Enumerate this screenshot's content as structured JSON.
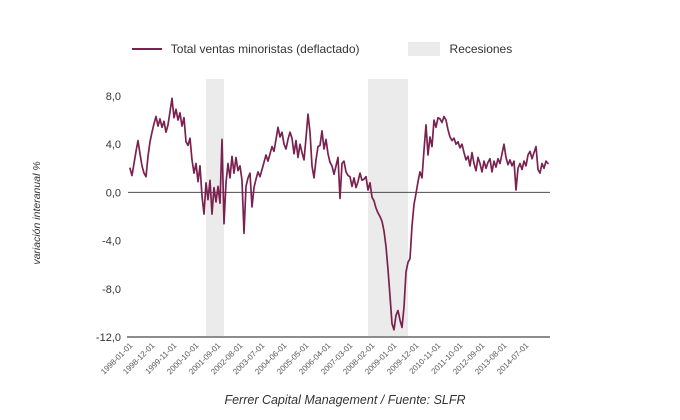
{
  "legend": {
    "series_label": "Total ventas minoristas (deflactado)",
    "recession_label": "Recesiones"
  },
  "y_axis": {
    "title": "variación interanual %",
    "ticks": [
      {
        "value": 8,
        "label": "8,0"
      },
      {
        "value": 4,
        "label": "4,0"
      },
      {
        "value": 0,
        "label": "0,0"
      },
      {
        "value": -4,
        "label": "-4,0"
      },
      {
        "value": -8,
        "label": "-8,0"
      },
      {
        "value": -12,
        "label": "-12,0"
      }
    ]
  },
  "x_axis": {
    "tick_labels": [
      "1998-01-01",
      "1998-12-01",
      "1999-11-01",
      "2000-10-01",
      "2001-09-01",
      "2002-08-01",
      "2003-07-01",
      "2004-06-01",
      "2005-05-01",
      "2006-04-01",
      "2007-03-01",
      "2008-02-01",
      "2009-01-01",
      "2009-12-01",
      "2010-11-01",
      "2011-10-01",
      "2012-09-01",
      "2013-08-01",
      "2014-07-01"
    ]
  },
  "footer": "Ferrer Capital Management / Fuente: SLFR",
  "colors": {
    "line": "#7b2150",
    "recession": "#ebebeb",
    "zero_line": "#4d4d4d",
    "axis_line": "#8c8c8c",
    "y_tick_text": "#333333",
    "x_tick_text": "#555555"
  },
  "chart_data": {
    "type": "line",
    "title": "",
    "ylabel": "variación interanual %",
    "ylim": [
      -12,
      8
    ],
    "grid": false,
    "legend_position": "top",
    "frequency": "monthly",
    "start_month": "1998-01",
    "series": [
      {
        "name": "Total ventas minoristas (deflactado)",
        "values": [
          2.0,
          1.4,
          2.4,
          3.4,
          4.3,
          3.2,
          2.2,
          1.6,
          1.3,
          3.0,
          4.2,
          5.0,
          5.7,
          6.3,
          5.5,
          6.1,
          5.4,
          5.9,
          5.0,
          5.6,
          6.7,
          7.8,
          6.2,
          6.9,
          6.0,
          6.6,
          5.5,
          6.2,
          4.2,
          3.9,
          4.5,
          2.7,
          1.6,
          2.4,
          0.9,
          2.2,
          -0.3,
          -1.8,
          0.8,
          -0.6,
          1.0,
          -1.8,
          0.4,
          -0.8,
          0.5,
          -0.9,
          4.4,
          -2.6,
          0.8,
          2.4,
          1.2,
          3.0,
          1.6,
          2.9,
          1.8,
          2.2,
          1.0,
          -3.4,
          0.5,
          1.2,
          1.6,
          -1.2,
          0.4,
          1.1,
          1.7,
          1.3,
          1.9,
          2.5,
          3.1,
          2.6,
          3.2,
          3.8,
          3.4,
          4.4,
          5.4,
          4.6,
          5.0,
          4.0,
          3.6,
          4.4,
          5.0,
          4.5,
          3.2,
          4.3,
          2.9,
          4.0,
          3.3,
          2.7,
          4.5,
          6.5,
          5.0,
          2.2,
          1.2,
          2.7,
          3.8,
          3.9,
          5.1,
          3.6,
          4.4,
          3.2,
          2.5,
          2.2,
          1.5,
          2.2,
          2.9,
          -0.5,
          2.4,
          2.6,
          1.7,
          1.4,
          1.3,
          0.5,
          1.2,
          0.4,
          0.9,
          1.6,
          1.0,
          1.1,
          1.3,
          0.2,
          0.8,
          -0.4,
          -0.7,
          -1.3,
          -1.7,
          -2.0,
          -2.4,
          -3.2,
          -4.5,
          -6.4,
          -8.6,
          -10.9,
          -11.4,
          -10.2,
          -9.8,
          -10.6,
          -11.2,
          -9.5,
          -6.6,
          -5.8,
          -5.5,
          -2.8,
          -1.0,
          -0.1,
          0.9,
          1.7,
          1.2,
          3.5,
          5.6,
          3.1,
          4.6,
          3.8,
          6.0,
          5.4,
          6.2,
          6.1,
          5.8,
          6.3,
          6.0,
          5.2,
          4.6,
          4.3,
          4.5,
          4.0,
          4.2,
          3.7,
          4.0,
          3.3,
          2.7,
          3.0,
          2.2,
          3.3,
          2.4,
          1.8,
          2.9,
          2.4,
          1.7,
          2.6,
          2.0,
          2.5,
          2.8,
          1.7,
          2.6,
          2.1,
          2.8,
          2.4,
          3.2,
          4.0,
          2.9,
          2.3,
          2.7,
          2.2,
          2.6,
          0.2,
          2.0,
          2.4,
          1.9,
          2.6,
          2.2,
          3.1,
          3.4,
          2.8,
          3.3,
          3.8,
          1.9,
          1.6,
          2.4,
          2.0,
          2.6,
          2.4
        ]
      }
    ],
    "recessions": [
      {
        "start": "2001-03-01",
        "end": "2001-12-01"
      },
      {
        "start": "2007-12-01",
        "end": "2009-08-01"
      }
    ]
  }
}
